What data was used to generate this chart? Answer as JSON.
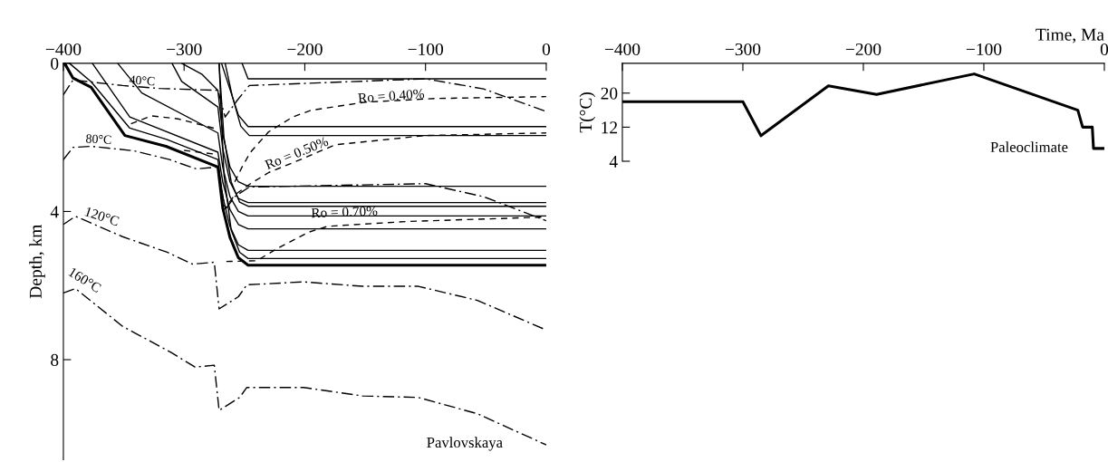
{
  "chart_data": [
    {
      "type": "line",
      "ylabel": "Depth, km",
      "xlim": [
        -400,
        0
      ],
      "ylim": [
        10.7,
        0
      ],
      "xticks": [
        {
          "value": -400,
          "label": "−400"
        },
        {
          "value": -300,
          "label": "−300"
        },
        {
          "value": -200,
          "label": "−200"
        },
        {
          "value": -100,
          "label": "−100"
        },
        0
      ],
      "yticks": [
        0,
        4,
        8
      ],
      "line_style": "solid",
      "series": [
        {
          "color": "#000000",
          "x": [
            -399,
            -392,
            -377,
            -349,
            -315,
            -272,
            -268,
            -262,
            -255,
            -247,
            0
          ],
          "values": [
            0,
            0.4,
            0.65,
            1.95,
            2.24,
            2.8,
            3.9,
            4.7,
            5.25,
            5.45,
            5.45
          ]
        },
        {
          "color": "#000000",
          "x": [
            -395,
            -377,
            -345,
            -315,
            -272,
            -268,
            -262,
            -255,
            -247,
            0
          ],
          "values": [
            0,
            0.5,
            1.75,
            2.05,
            2.6,
            3.6,
            4.4,
            4.9,
            5.05,
            5.05
          ]
        },
        {
          "color": "#000000",
          "x": [
            -376,
            -345,
            -272,
            -268,
            -262,
            -255,
            -247,
            0
          ],
          "values": [
            0,
            1.45,
            2.4,
            3.2,
            3.95,
            4.35,
            4.47,
            4.47
          ]
        },
        {
          "color": "#000000",
          "x": [
            -355,
            -335,
            -272,
            -268,
            -262,
            -255,
            -247,
            0
          ],
          "values": [
            0,
            0.8,
            1.88,
            2.8,
            3.6,
            4.0,
            4.12,
            4.12
          ]
        },
        {
          "color": "#000000",
          "x": [
            -310,
            -302,
            -272,
            -268,
            -262,
            -255,
            -247,
            0
          ],
          "values": [
            0,
            0.49,
            1.18,
            2.3,
            3.2,
            3.65,
            3.76,
            3.76
          ]
        },
        {
          "color": "#000000",
          "x": [
            -302,
            -285,
            -272,
            -268,
            -262,
            -255,
            -247,
            0
          ],
          "values": [
            0,
            0.3,
            0.73,
            1.9,
            2.8,
            3.2,
            3.32,
            3.32
          ]
        },
        {
          "color": "#000000",
          "x": [
            -252,
            -247,
            0
          ],
          "values": [
            0,
            0.42,
            0.42
          ]
        },
        {
          "color": "#000000",
          "x": [
            -269,
            -262,
            -255,
            -247,
            0
          ],
          "values": [
            0,
            0.7,
            1.4,
            1.71,
            1.71
          ]
        },
        {
          "color": "#000000",
          "x": [
            -266,
            -260,
            -253,
            -246,
            0
          ],
          "values": [
            0,
            0.9,
            1.7,
            1.95,
            1.95
          ]
        },
        {
          "color": "#000000",
          "x": [
            -271,
            -267,
            -261,
            -254,
            -247,
            0
          ],
          "values": [
            0,
            2.0,
            3.2,
            3.75,
            3.86,
            3.86
          ]
        },
        {
          "color": "#000000",
          "x": [
            -271,
            -267,
            -261,
            -254,
            -247,
            0
          ],
          "values": [
            0,
            3.0,
            4.5,
            5.1,
            5.27,
            5.27
          ]
        },
        {
          "color": "#000000",
          "line_style": "dashdot",
          "x": [
            -400,
            -392,
            -351,
            -320,
            -272,
            -266,
            -256,
            -246,
            -100,
            -52,
            0
          ],
          "values": [
            0.85,
            0.45,
            0.6,
            0.68,
            0.73,
            1.45,
            1.0,
            0.6,
            0.42,
            0.69,
            1.3
          ]
        },
        {
          "color": "#000000",
          "line_style": "dashdot",
          "x": [
            -400,
            -392,
            -377,
            -342,
            -312,
            -290,
            -272,
            -266,
            -258,
            -246,
            -100,
            -52,
            0
          ],
          "values": [
            2.6,
            2.27,
            2.24,
            2.36,
            2.6,
            2.85,
            2.8,
            3.95,
            3.6,
            3.34,
            3.25,
            3.6,
            4.25
          ]
        },
        {
          "color": "#000000",
          "line_style": "dashdot",
          "x": [
            -400,
            -390,
            -351,
            -314,
            -293,
            -275,
            -271,
            -255,
            -248,
            -201,
            -152,
            -106,
            -57,
            0
          ],
          "values": [
            4.35,
            4.13,
            4.68,
            5.1,
            5.42,
            5.37,
            6.63,
            6.3,
            5.98,
            5.9,
            6.02,
            6.02,
            6.4,
            7.2
          ]
        },
        {
          "color": "#000000",
          "line_style": "dashdot",
          "x": [
            -400,
            -390,
            -351,
            -311,
            -291,
            -275,
            -271,
            -254,
            -248,
            -201,
            -152,
            -106,
            -57,
            0
          ],
          "values": [
            6.2,
            6.08,
            7.1,
            7.8,
            8.2,
            8.15,
            9.37,
            9.02,
            8.75,
            8.75,
            8.98,
            9.02,
            9.46,
            10.3
          ]
        },
        {
          "color": "#000000",
          "line_style": "dashed",
          "x": [
            -344,
            -327,
            -305,
            -272,
            -270,
            -258,
            -252,
            -245,
            -230,
            -210,
            -195,
            -150,
            -92,
            0
          ],
          "values": [
            1.63,
            1.42,
            1.5,
            1.78,
            null,
            3.2,
            2.8,
            2.4,
            1.85,
            1.45,
            1.27,
            1.05,
            0.95,
            0.9
          ]
        },
        {
          "color": "#000000",
          "line_style": "dashed",
          "x": [
            -300,
            -275,
            -272,
            -268,
            -258,
            -245,
            -230,
            -200,
            -175,
            -100,
            0
          ],
          "values": [
            2.35,
            2.45,
            null,
            4.0,
            3.55,
            3.25,
            2.95,
            2.55,
            2.2,
            1.95,
            1.88
          ]
        },
        {
          "color": "#000000",
          "line_style": "dashed",
          "x": [
            -265,
            -240,
            -220,
            -197,
            -181,
            -115,
            0
          ],
          "values": [
            5.35,
            5.33,
            4.95,
            4.56,
            4.4,
            4.27,
            4.15
          ]
        }
      ],
      "annotations": [
        "40°C",
        "80°C",
        "120°C",
        "160°C",
        "Ro = 0.40%",
        "Ro = 0.50%",
        "Ro = 0.70%",
        "Pavlovskaya"
      ]
    },
    {
      "type": "line",
      "xlabel": "Time, Ma",
      "ylabel": "T(°C)",
      "xlim": [
        -400,
        0
      ],
      "ylim": [
        4,
        27
      ],
      "xticks": [
        {
          "value": -400,
          "label": "−400"
        },
        {
          "value": -300,
          "label": "−300"
        },
        {
          "value": -200,
          "label": "−200"
        },
        {
          "value": -100,
          "label": "−100"
        },
        0
      ],
      "yticks": [
        4,
        12,
        20
      ],
      "line_style": "solid",
      "series": [
        {
          "color": "#000000",
          "x": [
            -400,
            -300,
            -285,
            -229,
            -189,
            -108,
            -22,
            -18,
            -10,
            -9,
            0
          ],
          "values": [
            18,
            18,
            10,
            21.7,
            19.7,
            24.5,
            16,
            12,
            12,
            7,
            7
          ]
        }
      ],
      "annotations": [
        "Paleoclimate"
      ]
    }
  ]
}
